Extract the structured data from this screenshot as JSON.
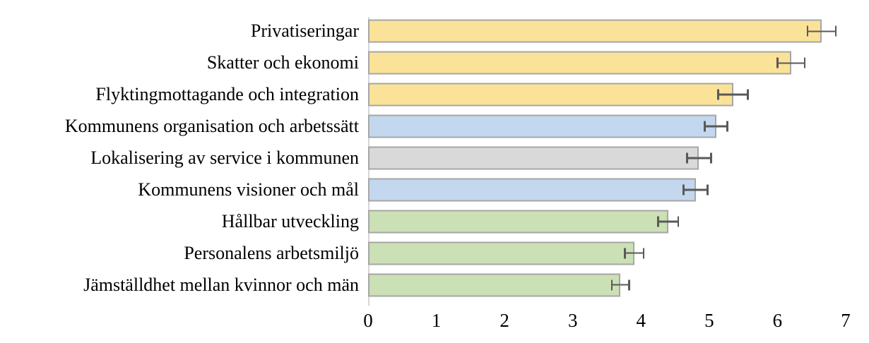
{
  "chart_data": {
    "type": "bar",
    "orientation": "horizontal",
    "title": "",
    "xlabel": "",
    "ylabel": "",
    "grid": false,
    "legend": false,
    "xlim": [
      0,
      7
    ],
    "x_ticks": [
      "0",
      "1",
      "2",
      "3",
      "4",
      "5",
      "6",
      "7"
    ],
    "categories": [
      "Privatiseringar",
      "Skatter och ekonomi",
      "Flyktingmottagande och integration",
      "Kommunens organisation och arbetssätt",
      "Lokalisering av service i kommunen",
      "Kommunens visioner och mål",
      "Hållbar utveckling",
      "Personalens arbetsmiljö",
      "Jämställdhet mellan kvinnor och män"
    ],
    "values": [
      6.65,
      6.2,
      5.35,
      5.1,
      4.85,
      4.8,
      4.4,
      3.9,
      3.7
    ],
    "errors": [
      0.22,
      0.21,
      0.23,
      0.18,
      0.19,
      0.19,
      0.16,
      0.15,
      0.14
    ],
    "bar_colors": [
      "#fae299",
      "#fae299",
      "#fae299",
      "#c3d8ee",
      "#d9d9d9",
      "#c3d8ee",
      "#cbe0b4",
      "#cbe0b4",
      "#cbe0b4"
    ],
    "bar_border_color": "#a6a6a6",
    "error_bar_color": "#595959",
    "axis_line_color": "#d6d6d6"
  }
}
